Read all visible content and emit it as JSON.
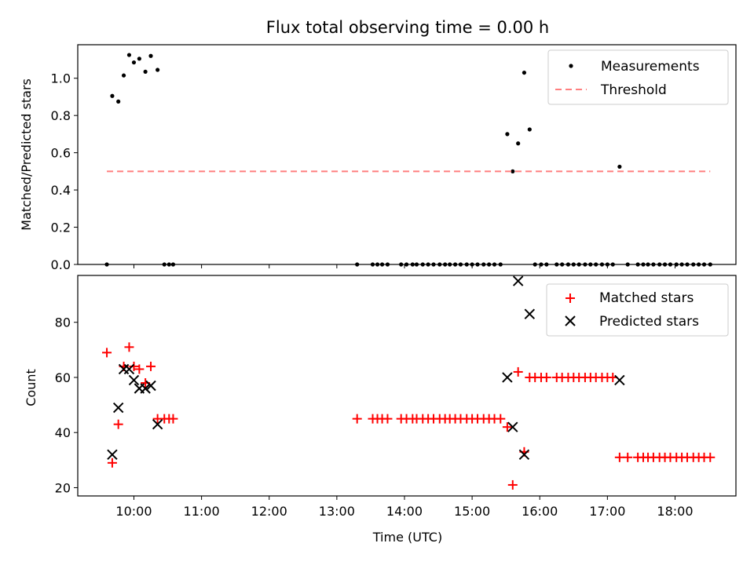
{
  "figure": {
    "title": "Flux total observing time = 0.00 h",
    "xlabel": "Time (UTC)"
  },
  "colors": {
    "measurement": "#000000",
    "threshold": "#ff7f7f",
    "matched": "#ff0000",
    "predicted": "#000000"
  },
  "chart_data": [
    {
      "type": "scatter",
      "ylabel": "Matched/Predicted stars",
      "x_unit": "hours UTC",
      "xlim": [
        9.17,
        18.9
      ],
      "ylim": [
        0.0,
        1.18
      ],
      "x_ticks": [
        "10:00",
        "11:00",
        "12:00",
        "13:00",
        "14:00",
        "15:00",
        "16:00",
        "17:00",
        "18:00"
      ],
      "x_tick_values": [
        10,
        11,
        12,
        13,
        14,
        15,
        16,
        17,
        18
      ],
      "x_tick_labels_visible": false,
      "y_ticks": [
        "0.0",
        "0.2",
        "0.4",
        "0.6",
        "0.8",
        "1.0"
      ],
      "y_tick_values": [
        0.0,
        0.2,
        0.4,
        0.6,
        0.8,
        1.0
      ],
      "legend_position": "top-right",
      "grid": false,
      "series": [
        {
          "name": "Measurements",
          "marker": "dot",
          "color_key": "measurement",
          "x": [
            9.6,
            9.68,
            9.77,
            9.85,
            9.93,
            10.0,
            10.08,
            10.17,
            10.25,
            10.35,
            10.45,
            10.52,
            10.58,
            13.3,
            13.53,
            13.6,
            13.67,
            13.75,
            13.95,
            14.03,
            14.12,
            14.18,
            14.27,
            14.35,
            14.43,
            14.52,
            14.6,
            14.67,
            14.75,
            14.83,
            14.92,
            15.0,
            15.08,
            15.17,
            15.25,
            15.33,
            15.42,
            15.52,
            15.6,
            15.68,
            15.77,
            15.85,
            15.93,
            16.02,
            16.1,
            16.25,
            16.33,
            16.42,
            16.5,
            16.58,
            16.67,
            16.75,
            16.83,
            16.92,
            17.0,
            17.08,
            17.18,
            17.3,
            17.45,
            17.53,
            17.6,
            17.68,
            17.77,
            17.85,
            17.93,
            18.02,
            18.1,
            18.18,
            18.27,
            18.35,
            18.43,
            18.52
          ],
          "y": [
            0.0,
            0.905,
            0.875,
            1.015,
            1.125,
            1.085,
            1.105,
            1.035,
            1.12,
            1.045,
            0.0,
            0.0,
            0.0,
            0.0,
            0.0,
            0.0,
            0.0,
            0.0,
            0.0,
            0.0,
            0.0,
            0.0,
            0.0,
            0.0,
            0.0,
            0.0,
            0.0,
            0.0,
            0.0,
            0.0,
            0.0,
            0.0,
            0.0,
            0.0,
            0.0,
            0.0,
            0.0,
            0.7,
            0.5,
            0.65,
            1.03,
            0.725,
            0.0,
            0.0,
            0.0,
            0.0,
            0.0,
            0.0,
            0.0,
            0.0,
            0.0,
            0.0,
            0.0,
            0.0,
            0.0,
            0.0,
            0.525,
            0.0,
            0.0,
            0.0,
            0.0,
            0.0,
            0.0,
            0.0,
            0.0,
            0.0,
            0.0,
            0.0,
            0.0,
            0.0,
            0.0,
            0.0
          ]
        },
        {
          "name": "Threshold",
          "marker": "dashed-line",
          "color_key": "threshold",
          "x": [
            9.6,
            18.52
          ],
          "y": [
            0.5,
            0.5
          ]
        }
      ]
    },
    {
      "type": "scatter",
      "ylabel": "Count",
      "x_unit": "hours UTC",
      "xlim": [
        9.17,
        18.9
      ],
      "ylim": [
        17,
        97
      ],
      "x_ticks": [
        "10:00",
        "11:00",
        "12:00",
        "13:00",
        "14:00",
        "15:00",
        "16:00",
        "17:00",
        "18:00"
      ],
      "x_tick_values": [
        10,
        11,
        12,
        13,
        14,
        15,
        16,
        17,
        18
      ],
      "y_ticks": [
        "20",
        "40",
        "60",
        "80"
      ],
      "y_tick_values": [
        20,
        40,
        60,
        80
      ],
      "legend_position": "top-right",
      "grid": false,
      "series": [
        {
          "name": "Matched stars",
          "marker": "plus",
          "color_key": "matched",
          "x": [
            9.6,
            9.68,
            9.77,
            9.85,
            9.93,
            10.0,
            10.08,
            10.17,
            10.25,
            10.35,
            10.45,
            10.52,
            10.58,
            13.3,
            13.53,
            13.6,
            13.67,
            13.75,
            13.95,
            14.03,
            14.12,
            14.18,
            14.27,
            14.35,
            14.43,
            14.52,
            14.6,
            14.67,
            14.75,
            14.83,
            14.92,
            15.0,
            15.08,
            15.17,
            15.25,
            15.33,
            15.42,
            15.52,
            15.6,
            15.68,
            15.77,
            15.85,
            15.93,
            16.02,
            16.1,
            16.25,
            16.33,
            16.42,
            16.5,
            16.58,
            16.67,
            16.75,
            16.83,
            16.92,
            17.0,
            17.08,
            17.18,
            17.3,
            17.45,
            17.53,
            17.6,
            17.68,
            17.77,
            17.85,
            17.93,
            18.02,
            18.1,
            18.18,
            18.27,
            18.35,
            18.43,
            18.52
          ],
          "y": [
            69,
            29,
            43,
            64,
            71,
            64,
            63,
            58,
            64,
            45,
            45,
            45,
            45,
            45,
            45,
            45,
            45,
            45,
            45,
            45,
            45,
            45,
            45,
            45,
            45,
            45,
            45,
            45,
            45,
            45,
            45,
            45,
            45,
            45,
            45,
            45,
            45,
            42,
            21,
            62,
            33,
            60,
            60,
            60,
            60,
            60,
            60,
            60,
            60,
            60,
            60,
            60,
            60,
            60,
            60,
            60,
            31,
            31,
            31,
            31,
            31,
            31,
            31,
            31,
            31,
            31,
            31,
            31,
            31,
            31,
            31,
            31
          ]
        },
        {
          "name": "Predicted stars",
          "marker": "x",
          "color_key": "predicted",
          "x": [
            9.68,
            9.77,
            9.85,
            9.93,
            10.0,
            10.08,
            10.17,
            10.25,
            10.35,
            15.52,
            15.6,
            15.68,
            15.77,
            15.85,
            17.18
          ],
          "y": [
            32,
            49,
            63,
            63,
            59,
            56,
            56,
            57,
            43,
            60,
            42,
            95,
            32,
            83,
            59
          ]
        }
      ]
    }
  ]
}
